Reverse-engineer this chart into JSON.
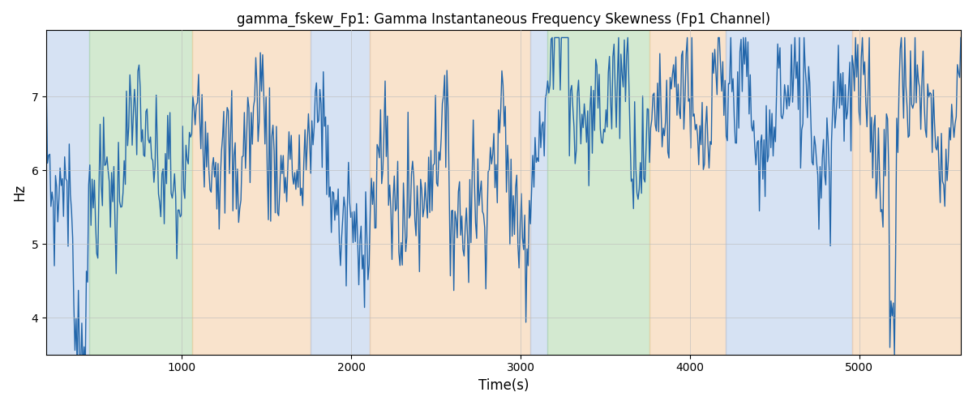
{
  "title": "gamma_fskew_Fp1: Gamma Instantaneous Frequency Skewness (Fp1 Channel)",
  "xlabel": "Time(s)",
  "ylabel": "Hz",
  "xlim": [
    200,
    5600
  ],
  "ylim": [
    3.5,
    7.9
  ],
  "line_color": "#2266aa",
  "line_width": 1.0,
  "background_color": "#ffffff",
  "grid_color": "#bbbbbb",
  "grid_alpha": 0.6,
  "bands": [
    {
      "xmin": 200,
      "xmax": 455,
      "color": "#aec6e8",
      "alpha": 0.5
    },
    {
      "xmin": 455,
      "xmax": 1060,
      "color": "#a8d5a2",
      "alpha": 0.5
    },
    {
      "xmin": 1060,
      "xmax": 1760,
      "color": "#f5c99a",
      "alpha": 0.5
    },
    {
      "xmin": 1760,
      "xmax": 2110,
      "color": "#aec6e8",
      "alpha": 0.5
    },
    {
      "xmin": 2110,
      "xmax": 3060,
      "color": "#f5c99a",
      "alpha": 0.5
    },
    {
      "xmin": 3060,
      "xmax": 3160,
      "color": "#aec6e8",
      "alpha": 0.5
    },
    {
      "xmin": 3160,
      "xmax": 3760,
      "color": "#a8d5a2",
      "alpha": 0.5
    },
    {
      "xmin": 3760,
      "xmax": 4210,
      "color": "#f5c99a",
      "alpha": 0.5
    },
    {
      "xmin": 4210,
      "xmax": 4960,
      "color": "#aec6e8",
      "alpha": 0.5
    },
    {
      "xmin": 4960,
      "xmax": 5600,
      "color": "#f5c99a",
      "alpha": 0.5
    }
  ],
  "yticks": [
    4,
    5,
    6,
    7
  ],
  "xticks": [
    1000,
    2000,
    3000,
    4000,
    5000
  ],
  "figsize": [
    12.0,
    5.0
  ],
  "dpi": 100
}
